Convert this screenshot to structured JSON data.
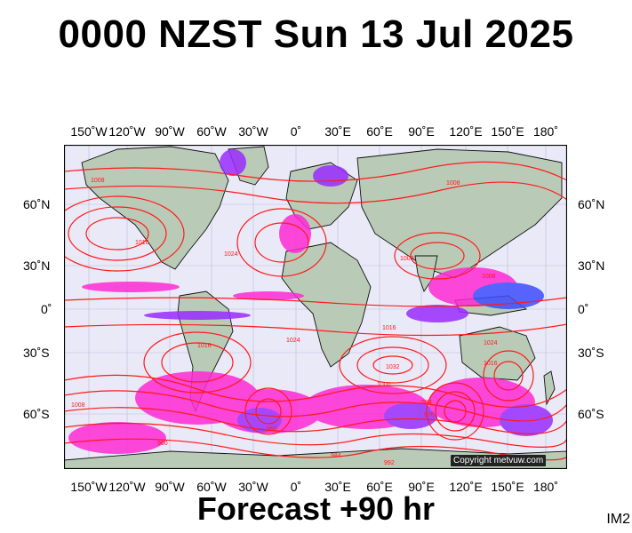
{
  "title": "0000 NZST Sun 13 Jul 2025",
  "footer": "Forecast +90 hr",
  "image_code": "IM2",
  "copyright": "Copyright metvuw.com",
  "longitude_ticks": [
    "150˚W",
    "120˚W",
    "90˚W",
    "60˚W",
    "30˚W",
    "0˚",
    "30˚E",
    "60˚E",
    "90˚E",
    "120˚E",
    "150˚E",
    "180˚"
  ],
  "latitude_ticks": [
    "60˚N",
    "30˚N",
    "0˚",
    "30˚S",
    "60˚S"
  ],
  "isobar_labels": [
    "1008",
    "1016",
    "1024",
    "1024",
    "1016",
    "1008",
    "1000",
    "1016",
    "1032",
    "1008",
    "1000",
    "984",
    "976",
    "968",
    "960",
    "984",
    "992",
    "1024",
    "1016",
    "1008"
  ],
  "colors": {
    "ocean": "#e9e9f7",
    "land": "#b9cbb7",
    "isobar": "#ff1a1a",
    "precip_magenta": "#ff2ad4",
    "precip_purple": "#9a2cff",
    "precip_blue": "#3d4dff"
  }
}
